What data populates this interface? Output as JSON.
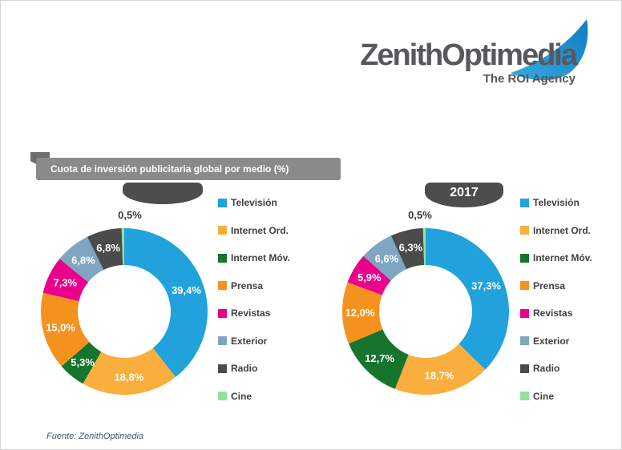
{
  "logo": {
    "brand": "ZenithOptimedia",
    "tagline": "The ROI Agency",
    "swoosh_color_light": "#36A9E1",
    "swoosh_color_dark": "#0F7DC2",
    "text_color": "#57585B"
  },
  "title_banner": {
    "text": "Cuota de inversión publicitaria global por medio (%)",
    "background": "#8A8A8A"
  },
  "footer": {
    "source": "Fuente: ZenithOptimedia"
  },
  "chart_data": [
    {
      "type": "pie",
      "variant": "donut",
      "year_label": "",
      "categories": [
        "Televisión",
        "Internet Ord.",
        "Internet Móv.",
        "Prensa",
        "Revistas",
        "Exterior",
        "Radio",
        "Cine"
      ],
      "values": [
        39.4,
        18.8,
        5.3,
        15.0,
        7.3,
        6.8,
        6.8,
        0.5
      ],
      "colors": [
        "#21A2DC",
        "#FAAE3D",
        "#17742D",
        "#F5921E",
        "#EB008C",
        "#7EA6C1",
        "#4B4B4B",
        "#8FE39A"
      ],
      "outside_label": "0,5%",
      "legend_position": "right",
      "start_angle_deg": -90,
      "direction": "clockwise"
    },
    {
      "type": "pie",
      "variant": "donut",
      "year_label": "2017",
      "categories": [
        "Televisión",
        "Internet Ord.",
        "Internet Móv.",
        "Prensa",
        "Revistas",
        "Exterior",
        "Radio",
        "Cine"
      ],
      "values": [
        37.3,
        18.7,
        12.7,
        12.0,
        5.9,
        6.6,
        6.3,
        0.5
      ],
      "colors": [
        "#21A2DC",
        "#FAAE3D",
        "#17742D",
        "#F5921E",
        "#EB008C",
        "#7EA6C1",
        "#4B4B4B",
        "#8FE39A"
      ],
      "outside_label": "0,5%",
      "legend_position": "right",
      "start_angle_deg": -90,
      "direction": "clockwise"
    }
  ]
}
